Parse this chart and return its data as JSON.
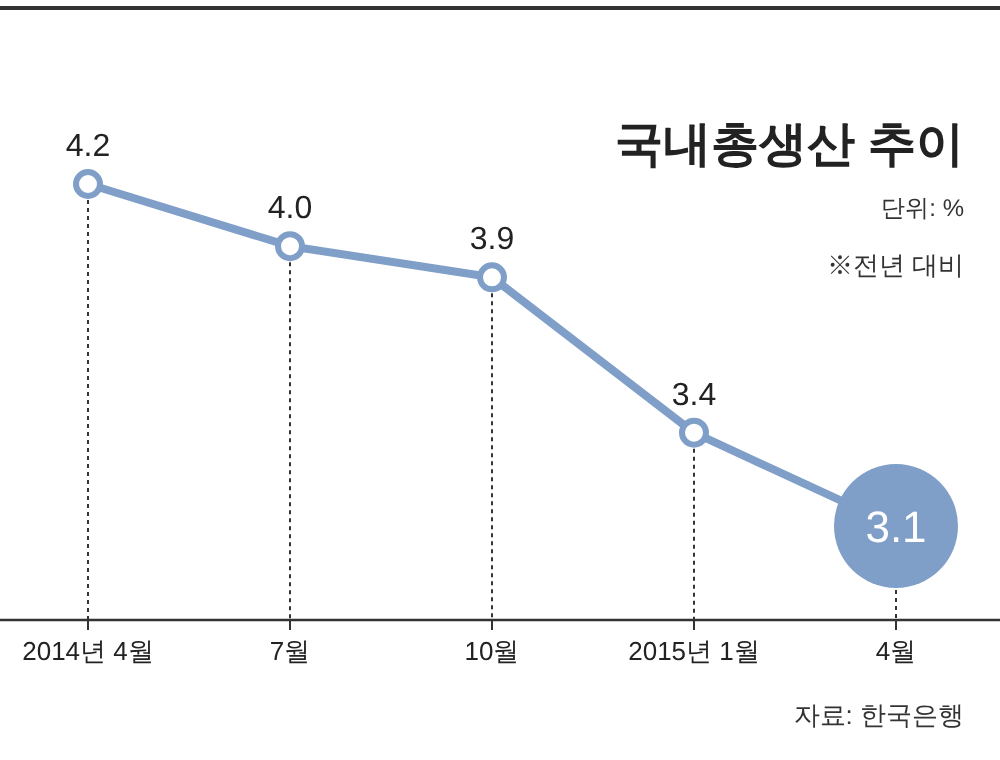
{
  "chart_data": {
    "type": "line",
    "title": "국내총생산 추이",
    "categories": [
      "2014년 4월",
      "7월",
      "10월",
      "2015년 1월",
      "4월"
    ],
    "series": [
      {
        "color": "#7f9fc8",
        "values": [
          4.2,
          4.0,
          3.9,
          3.4,
          3.1
        ],
        "value_labels": [
          "4.2",
          "4.0",
          "3.9",
          "3.4",
          "3.1"
        ]
      }
    ],
    "marker": "circle",
    "line_style": "solid",
    "grid": "x",
    "annotations": [
      "단위: %",
      "※전년 대비",
      "자료: 한국은행"
    ]
  }
}
